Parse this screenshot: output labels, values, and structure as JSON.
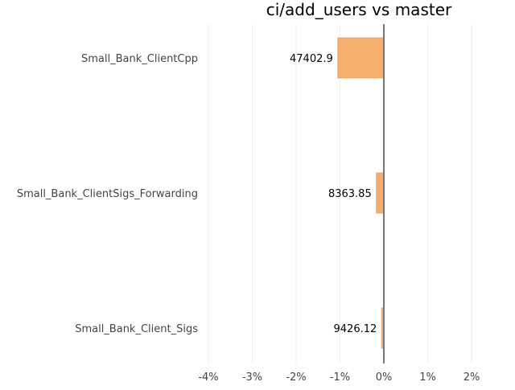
{
  "chart_data": {
    "type": "bar",
    "orientation": "horizontal",
    "title": "ci/add_users vs master",
    "xlabel": "",
    "ylabel": "",
    "xlim": [
      -4.4,
      2.4
    ],
    "x_ticks": [
      -4,
      -3,
      -2,
      -1,
      0,
      1,
      2
    ],
    "x_tick_labels": [
      "-4%",
      "-3%",
      "-2%",
      "-1%",
      "0%",
      "1%",
      "2%"
    ],
    "grid": true,
    "categories": [
      "Small_Bank_ClientCpp",
      "Small_Bank_ClientSigs_Forwarding",
      "Small_Bank_Client_Sigs"
    ],
    "values": [
      -1.05,
      -0.17,
      -0.05
    ],
    "data_labels": [
      "47402.9",
      "8363.85",
      "9426.12"
    ],
    "bar_color": "#f5ae6e",
    "bar_edge_color": "#f0a868",
    "zero_line_color": "#777777",
    "grid_color": "#eeeeee"
  }
}
